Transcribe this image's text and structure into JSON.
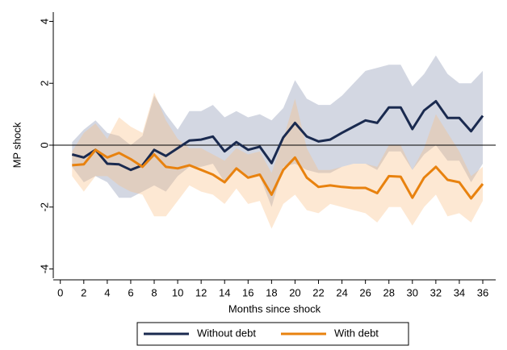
{
  "chart_data": {
    "type": "line",
    "x_label": "Months since shock",
    "y_label": "MP shock",
    "x": [
      1,
      2,
      3,
      4,
      5,
      6,
      7,
      8,
      9,
      10,
      11,
      12,
      13,
      14,
      15,
      16,
      17,
      18,
      19,
      20,
      21,
      22,
      23,
      24,
      25,
      26,
      27,
      28,
      29,
      30,
      31,
      32,
      33,
      34,
      35,
      36
    ],
    "series": [
      {
        "name": "Without debt",
        "color": "#1a2a4f",
        "band_color": "rgba(140,150,180,0.38)",
        "values": [
          -0.3,
          -0.4,
          -0.15,
          -0.6,
          -0.62,
          -0.8,
          -0.65,
          -0.15,
          -0.35,
          -0.1,
          0.15,
          0.18,
          0.28,
          -0.2,
          0.1,
          -0.15,
          -0.05,
          -0.58,
          0.25,
          0.72,
          0.28,
          0.12,
          0.18,
          0.4,
          0.6,
          0.8,
          0.72,
          1.22,
          1.22,
          0.52,
          1.12,
          1.42,
          0.88,
          0.88,
          0.45,
          0.95
        ],
        "upper": [
          0.1,
          0.5,
          0.8,
          0.4,
          0.3,
          0.0,
          0.3,
          1.6,
          1.0,
          0.5,
          1.1,
          1.1,
          1.3,
          0.9,
          1.1,
          0.9,
          1.0,
          0.8,
          1.2,
          2.1,
          1.5,
          1.3,
          1.3,
          1.6,
          2.0,
          2.4,
          2.5,
          2.6,
          2.6,
          1.9,
          2.3,
          2.9,
          2.3,
          2.0,
          2.0,
          2.4
        ],
        "lower": [
          -0.7,
          -1.2,
          -1.0,
          -1.2,
          -1.7,
          -1.7,
          -1.5,
          -1.3,
          -1.5,
          -1.0,
          -0.7,
          -0.7,
          -0.6,
          -1.2,
          -0.7,
          -1.0,
          -1.0,
          -2.0,
          -0.7,
          -0.6,
          -0.8,
          -0.9,
          -0.9,
          -0.7,
          -0.6,
          -0.6,
          -0.8,
          -0.2,
          -0.2,
          -0.8,
          -0.3,
          0.0,
          -0.5,
          -0.5,
          -1.2,
          -0.6
        ]
      },
      {
        "name": "With debt",
        "color": "#e8820f",
        "band_color": "rgba(248,190,130,0.35)",
        "values": [
          -0.65,
          -0.62,
          -0.15,
          -0.4,
          -0.25,
          -0.45,
          -0.7,
          -0.3,
          -0.7,
          -0.75,
          -0.65,
          -0.8,
          -0.95,
          -1.2,
          -0.75,
          -1.05,
          -0.95,
          -1.6,
          -0.8,
          -0.4,
          -1.05,
          -1.35,
          -1.3,
          -1.35,
          -1.38,
          -1.38,
          -1.55,
          -1.0,
          -1.02,
          -1.7,
          -1.05,
          -0.7,
          -1.12,
          -1.2,
          -1.72,
          -1.25
        ],
        "upper": [
          -0.2,
          0.4,
          0.7,
          0.2,
          0.9,
          0.6,
          0.4,
          1.7,
          0.8,
          0.2,
          -0.1,
          -0.1,
          -0.3,
          -0.5,
          -0.1,
          -0.3,
          -0.2,
          -0.9,
          0.2,
          1.5,
          -0.1,
          -0.8,
          -0.8,
          -0.7,
          -0.6,
          -0.6,
          -0.7,
          0.0,
          0.0,
          -0.8,
          -0.1,
          1.0,
          0.4,
          -0.2,
          -1.0,
          -0.7
        ],
        "lower": [
          -1.0,
          -1.5,
          -1.0,
          -1.0,
          -1.3,
          -1.5,
          -1.6,
          -2.3,
          -2.3,
          -1.8,
          -1.3,
          -1.5,
          -1.6,
          -1.9,
          -1.4,
          -1.9,
          -1.8,
          -2.7,
          -1.9,
          -1.6,
          -2.1,
          -2.2,
          -1.9,
          -2.0,
          -2.1,
          -2.2,
          -2.5,
          -2.0,
          -2.0,
          -2.6,
          -2.0,
          -1.6,
          -2.3,
          -2.2,
          -2.5,
          -1.8
        ]
      }
    ],
    "xlim": [
      -0.6,
      37.1
    ],
    "xticks": [
      0,
      2,
      4,
      6,
      8,
      10,
      12,
      14,
      16,
      18,
      20,
      22,
      24,
      26,
      28,
      30,
      32,
      34,
      36
    ],
    "ylim": [
      -4.3,
      4.3
    ],
    "yticks": [
      -4,
      -2,
      0,
      2,
      4
    ],
    "reference_line": 0,
    "legend": "bottom"
  }
}
